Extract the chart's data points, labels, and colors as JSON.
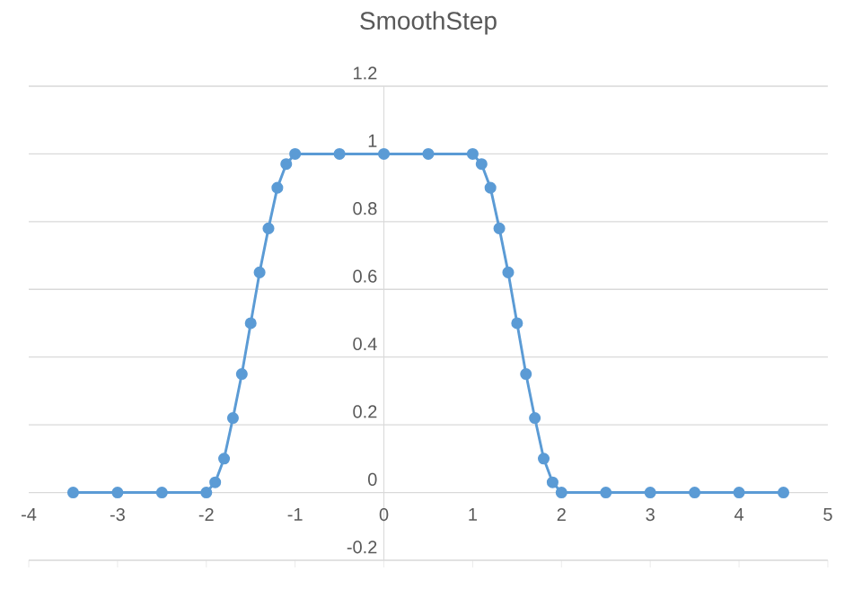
{
  "chart_data": {
    "type": "line",
    "title": "SmoothStep",
    "series": [
      {
        "color": "#5b9bd5",
        "x": [
          -3.5,
          -3,
          -2.5,
          -2,
          -1.9,
          -1.8,
          -1.7,
          -1.6,
          -1.5,
          -1.4,
          -1.3,
          -1.2,
          -1.1,
          -1,
          -0.5,
          0,
          0.5,
          1,
          1.1,
          1.2,
          1.3,
          1.4,
          1.5,
          1.6,
          1.7,
          1.8,
          1.9,
          2,
          2.5,
          3,
          3.5,
          4,
          4.5
        ],
        "values": [
          0,
          0,
          0,
          0,
          0.03,
          0.1,
          0.22,
          0.35,
          0.5,
          0.65,
          0.78,
          0.9,
          0.97,
          1,
          1,
          1,
          1,
          1,
          0.97,
          0.9,
          0.78,
          0.65,
          0.5,
          0.35,
          0.22,
          0.1,
          0.03,
          0,
          0,
          0,
          0,
          0,
          0
        ]
      }
    ],
    "xlim": [
      -4,
      5
    ],
    "ylim": [
      -0.2,
      1.2
    ],
    "xticks": [
      -4,
      -3,
      -2,
      -1,
      0,
      1,
      2,
      3,
      4,
      5
    ],
    "yticks": [
      -0.2,
      0,
      0.2,
      0.4,
      0.6,
      0.8,
      1,
      1.2
    ],
    "grid": "y",
    "marker": "circle",
    "line_style": "solid"
  }
}
